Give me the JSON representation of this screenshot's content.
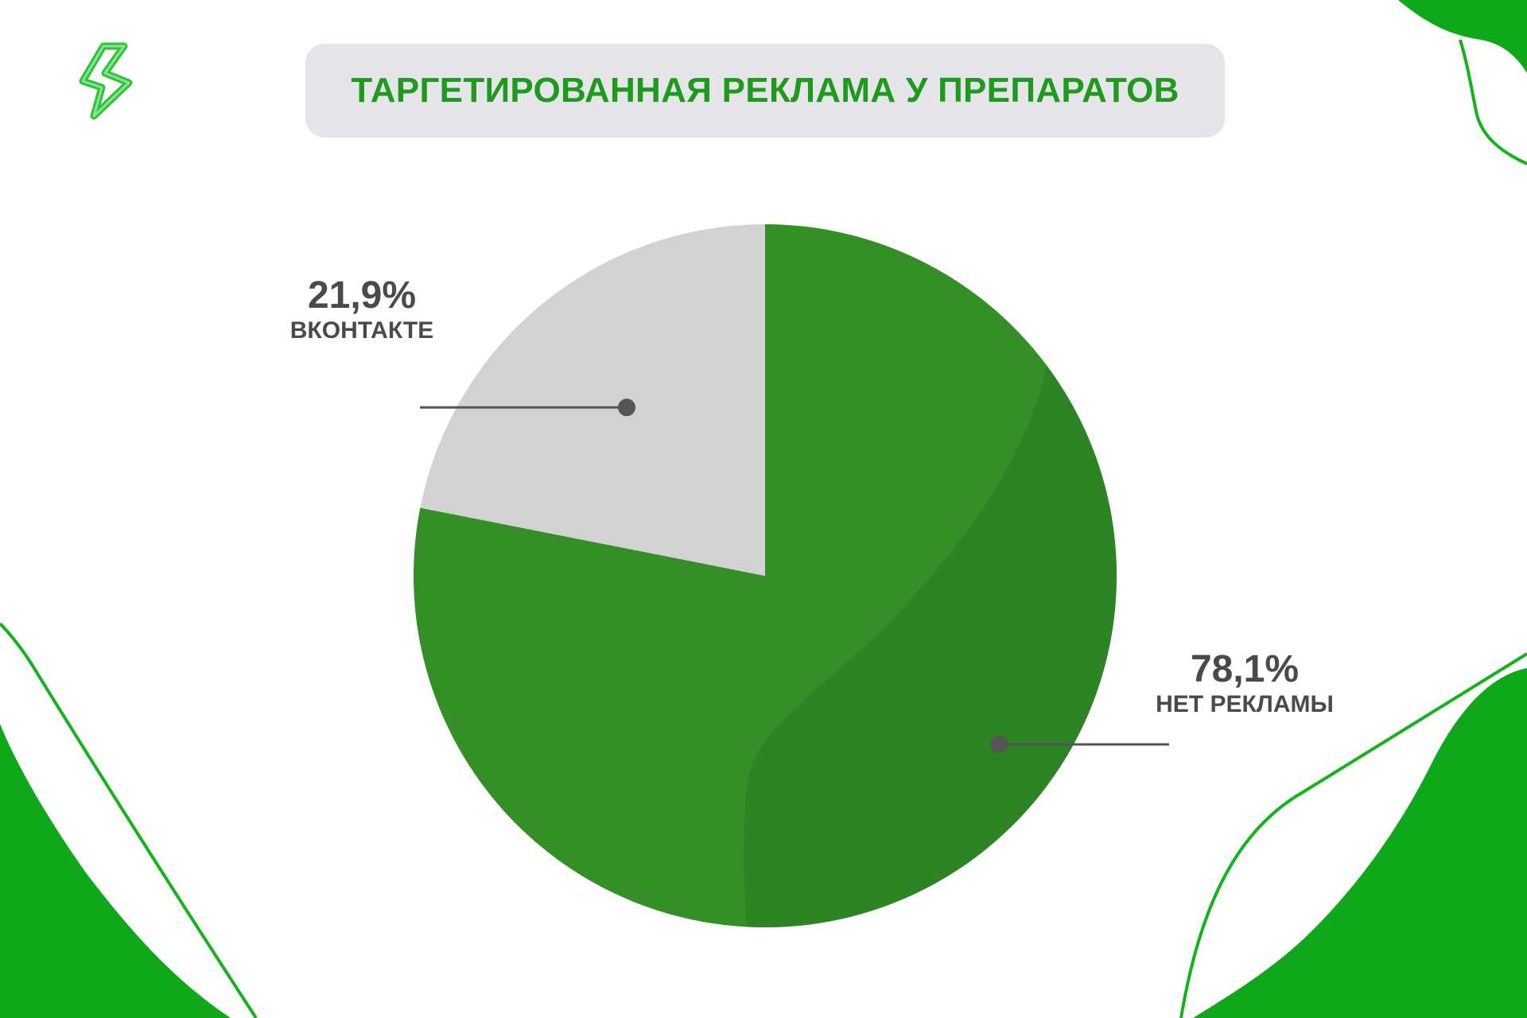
{
  "title": "ТАРГЕТИРОВАННАЯ РЕКЛАМА У ПРЕПАРАТОВ",
  "colors": {
    "title": "#1f9a1f",
    "title_background": "#e6e6ea",
    "slice_main": "#348f27",
    "slice_shade": "#2d8424",
    "slice_secondary": "#d2d2d2",
    "label_text": "#4a4a4a",
    "leader_line": "#555555",
    "decor_green": "#0fa81a",
    "decor_outline": "#14b31e"
  },
  "icons": {
    "logo": "lightning-bolt-icon"
  },
  "chart_data": {
    "type": "pie",
    "title": "ТАРГЕТИРОВАННАЯ РЕКЛАМА У ПРЕПАРАТОВ",
    "slices": [
      {
        "label": "НЕТ РЕКЛАМЫ",
        "value": 78.1,
        "value_label": "78,1%",
        "color": "#348f27"
      },
      {
        "label": "ВКОНТАКТЕ",
        "value": 21.9,
        "value_label": "21,9%",
        "color": "#d2d2d2"
      }
    ],
    "start": "12 o'clock",
    "direction": "clockwise",
    "legend": "none"
  }
}
